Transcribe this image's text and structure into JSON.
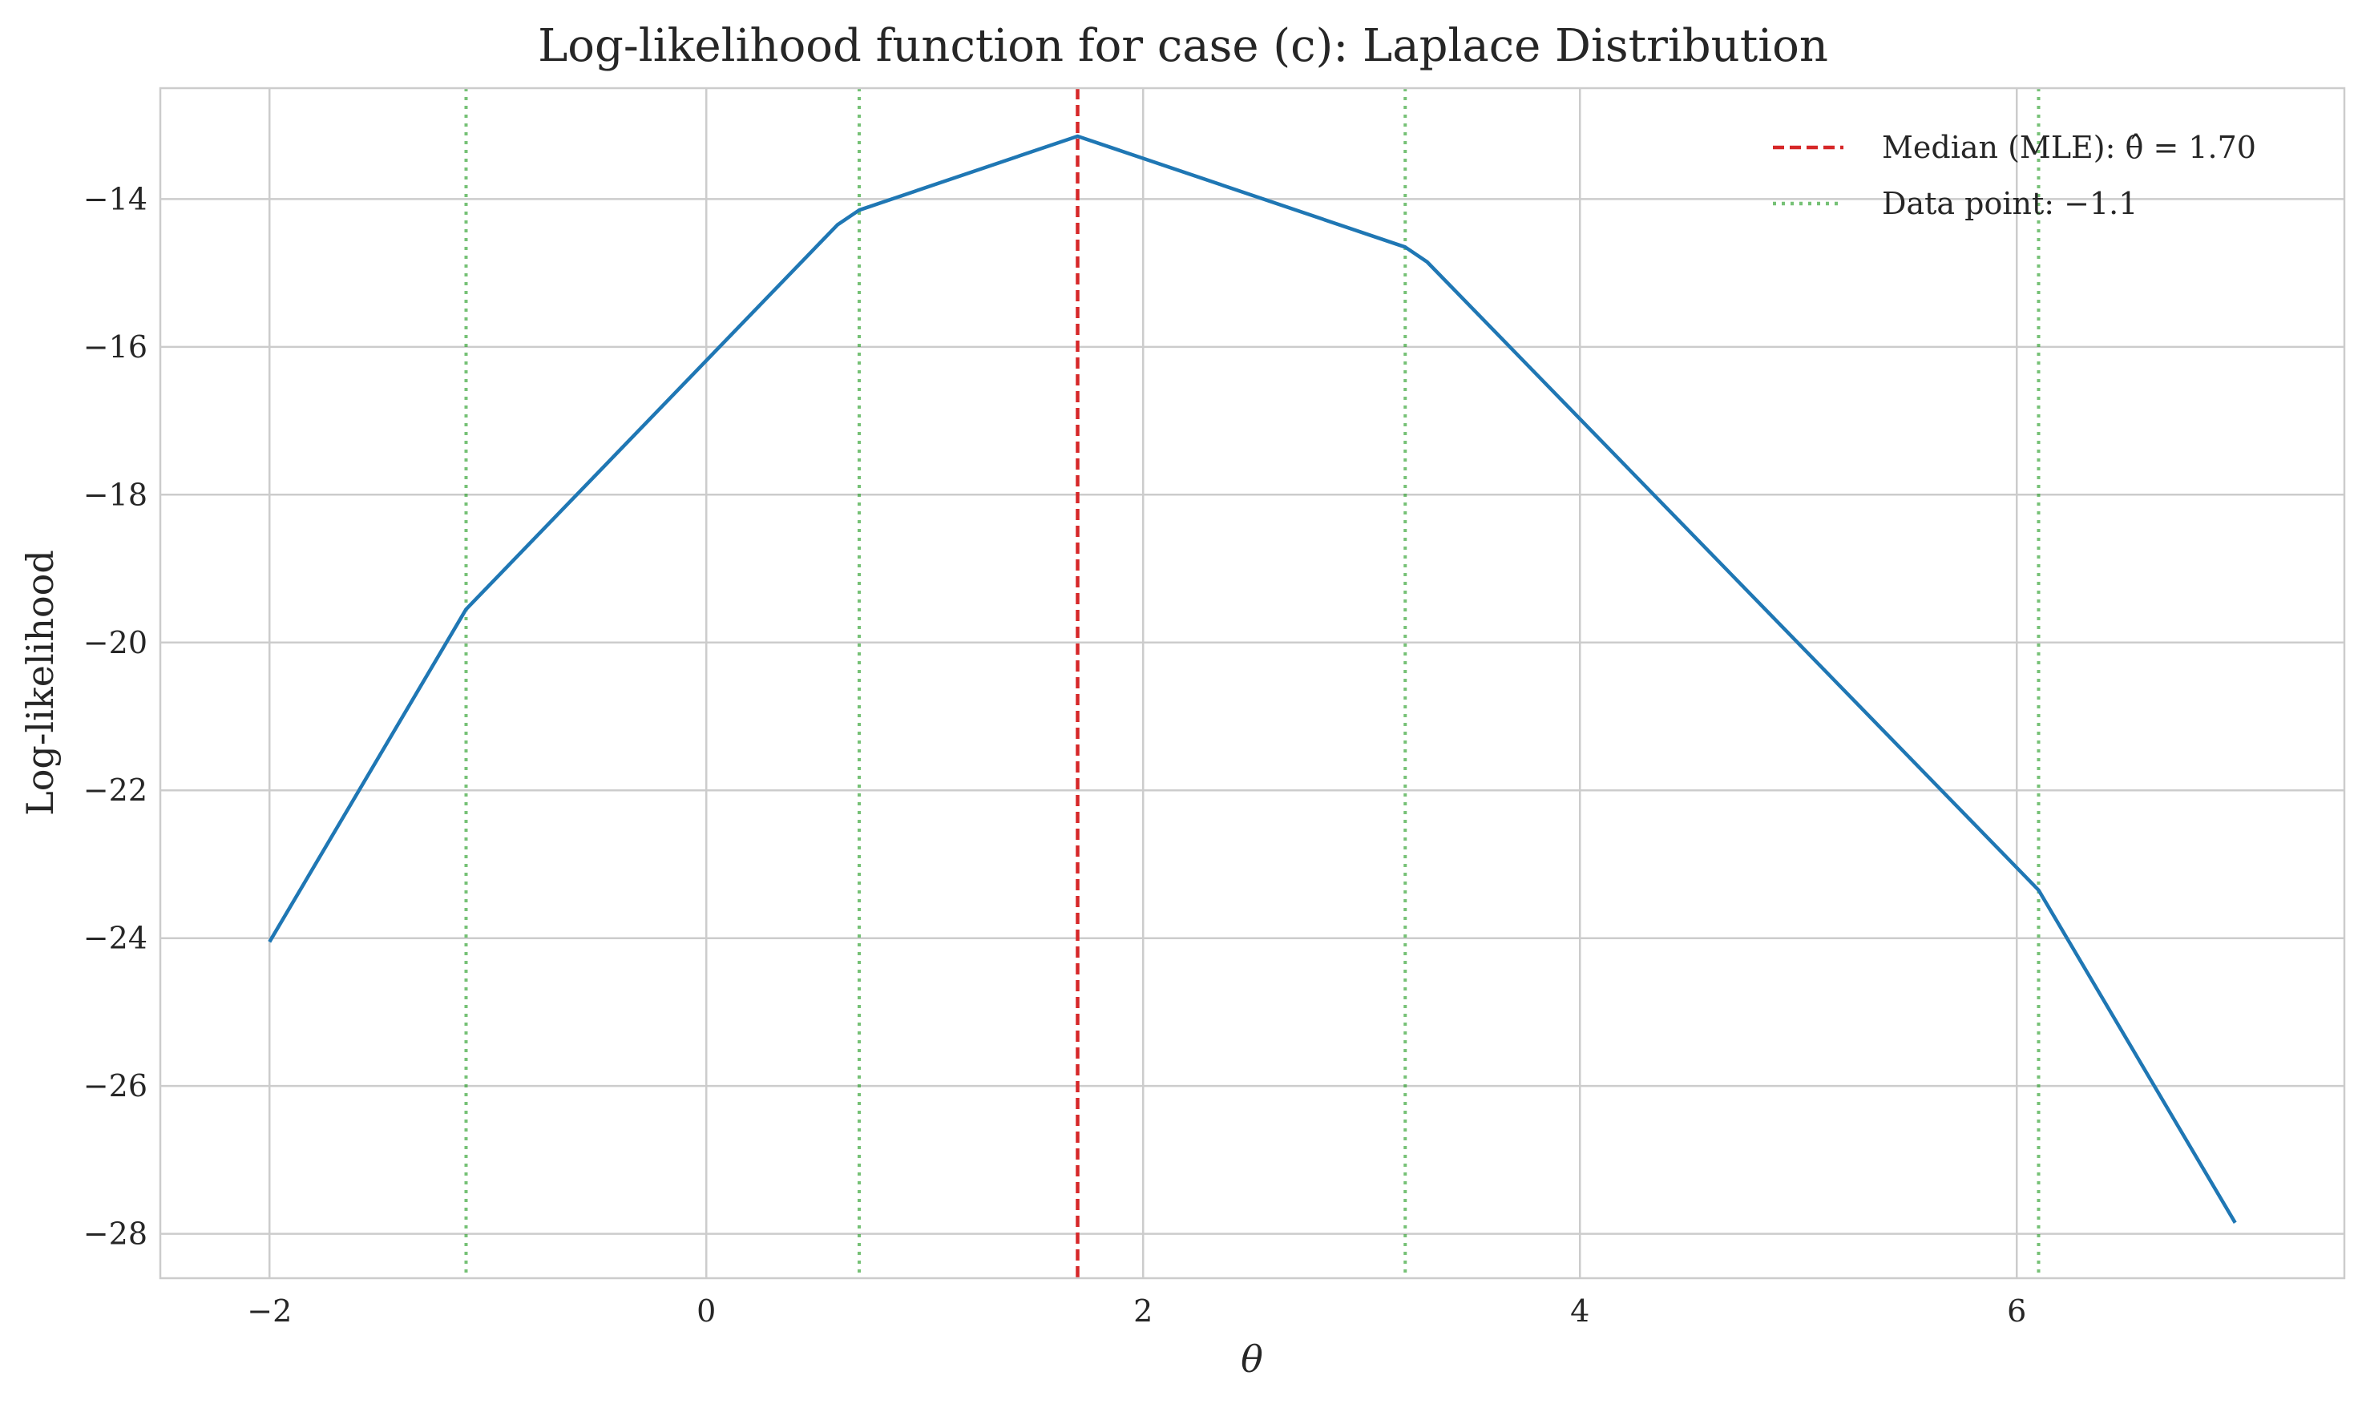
{
  "chart_data": {
    "type": "line",
    "title": "Log-likelihood function for case (c): Laplace Distribution",
    "xlabel": "θ",
    "ylabel": "Log-likelihood",
    "xlim": [
      -2.5,
      7.5
    ],
    "ylim": [
      -28.6,
      -12.5
    ],
    "x_ticks": [
      -2,
      0,
      2,
      4,
      6
    ],
    "x_tick_labels": [
      "−2",
      "0",
      "2",
      "4",
      "6"
    ],
    "y_ticks": [
      -14,
      -16,
      -18,
      -20,
      -22,
      -24,
      -26,
      -28
    ],
    "y_tick_labels": [
      "−14",
      "−16",
      "−18",
      "−20",
      "−22",
      "−24",
      "−26",
      "−28"
    ],
    "grid": true,
    "legend_position": "top-right",
    "series": [
      {
        "name": "",
        "color": "#1f77b4",
        "x": [
          -2.0,
          -1.1,
          0.6,
          0.7,
          1.7,
          3.2,
          3.3,
          6.1,
          7.0
        ],
        "y": [
          -24.05,
          -19.55,
          -14.35,
          -14.15,
          -13.15,
          -14.65,
          -14.85,
          -23.35,
          -27.85
        ]
      }
    ],
    "vertical_lines": [
      {
        "x": 1.7,
        "style": "dashed",
        "color": "#d62728",
        "label": "Median (MLE): θ̂ = 1.70"
      },
      {
        "x": -1.1,
        "style": "dotted",
        "color": "#2ca02c",
        "label": "Data point: −1.1"
      },
      {
        "x": 0.7,
        "style": "dotted",
        "color": "#2ca02c"
      },
      {
        "x": 3.2,
        "style": "dotted",
        "color": "#2ca02c"
      },
      {
        "x": 6.1,
        "style": "dotted",
        "color": "#2ca02c"
      }
    ],
    "legend": [
      {
        "label": "Median (MLE): θ̂ = 1.70",
        "style": "dashed",
        "color": "#d62728"
      },
      {
        "label": "Data point: −1.1",
        "style": "dotted",
        "color": "#2ca02c"
      }
    ]
  }
}
